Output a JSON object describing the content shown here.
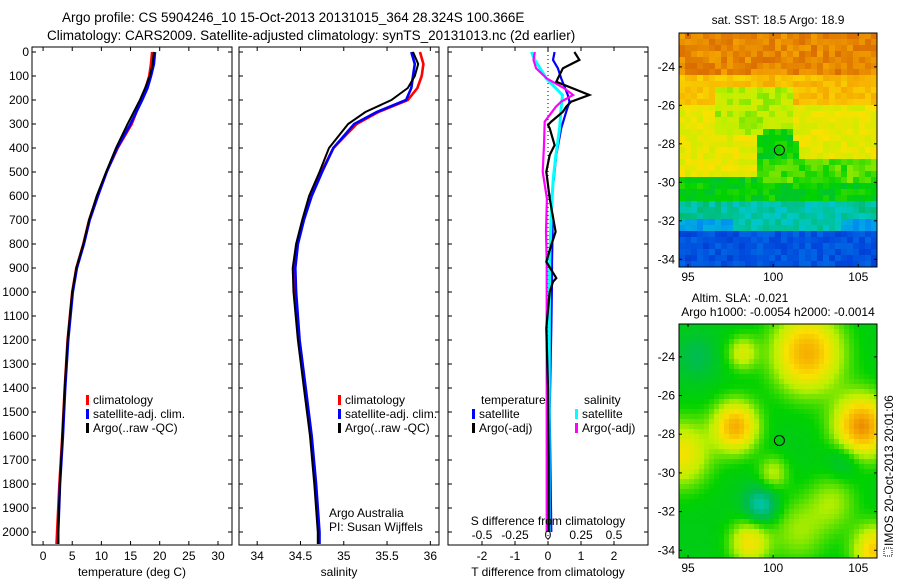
{
  "header": {
    "title_line1": "Argo profile: CS 5904246_10 15-Oct-2013 20131015_364 28.324S 100.366E",
    "title_line2": "Climatology: CARS2009. Satellite-adjusted climatology: synTS_20131013.nc (2d earlier)"
  },
  "credit": {
    "line1": "Argo Australia",
    "line2": "PI: Susan Wijffels"
  },
  "footer_stamp": "IMOS 20-Oct-2013 20:01:06",
  "colors": {
    "climatology": "#ff0000",
    "satellite": "#0000ff",
    "argo": "#000000",
    "sal_satellite": "#00ffff",
    "sal_argo": "#ff00ff"
  },
  "chart_data": [
    {
      "id": "temperature",
      "type": "line",
      "xlabel": "temperature (deg C)",
      "ylabel": "depth",
      "xlim": [
        -1.9,
        32.4
      ],
      "ylim": [
        2054,
        -21
      ],
      "xticks": [
        "0",
        "5",
        "10",
        "15",
        "20",
        "25",
        "30"
      ],
      "yticks": [
        "0",
        "100",
        "200",
        "300",
        "400",
        "500",
        "600",
        "700",
        "800",
        "900",
        "1000",
        "1100",
        "1200",
        "1300",
        "1400",
        "1500",
        "1600",
        "1700",
        "1800",
        "1900",
        "2000"
      ],
      "legend": [
        "climatology",
        "satellite-adj. clim.",
        "Argo(..raw -QC)"
      ],
      "depth": [
        0,
        50,
        100,
        150,
        200,
        300,
        400,
        500,
        600,
        700,
        800,
        900,
        1000,
        1200,
        1400,
        1600,
        1800,
        2000,
        2050
      ],
      "series": [
        {
          "name": "climatology",
          "values": [
            18.7,
            18.5,
            18.2,
            17.6,
            16.8,
            15.2,
            12.8,
            10.9,
            9.3,
            7.9,
            6.9,
            5.7,
            5.0,
            4.2,
            3.7,
            3.3,
            2.8,
            2.4,
            2.3
          ]
        },
        {
          "name": "satellite-adj. clim.",
          "values": [
            19.2,
            19.0,
            18.5,
            17.9,
            17.0,
            15.0,
            12.7,
            10.9,
            9.4,
            8.0,
            7.0,
            5.8,
            5.1,
            4.3,
            3.8,
            3.4,
            2.9,
            2.6,
            2.6
          ]
        },
        {
          "name": "Argo(..raw -QC)",
          "values": [
            19.0,
            18.8,
            18.3,
            17.5,
            16.6,
            14.5,
            12.5,
            10.8,
            9.2,
            7.9,
            6.9,
            5.7,
            5.0,
            4.2,
            3.7,
            3.3,
            2.9,
            2.6,
            2.6
          ]
        }
      ]
    },
    {
      "id": "salinity",
      "type": "line",
      "xlabel": "salinity",
      "xlim": [
        33.79,
        36.1
      ],
      "ylim": [
        2054,
        -21
      ],
      "xticks": [
        "34",
        "34.5",
        "35",
        "35.5",
        "36"
      ],
      "legend": [
        "climatology",
        "satellite-adj. clim.",
        "Argo(..raw -QC)"
      ],
      "depth": [
        0,
        50,
        100,
        150,
        200,
        250,
        300,
        400,
        500,
        600,
        700,
        800,
        900,
        1000,
        1200,
        1400,
        1600,
        1800,
        2000,
        2050
      ],
      "series": [
        {
          "name": "climatology",
          "values": [
            35.88,
            35.92,
            35.9,
            35.85,
            35.74,
            35.4,
            35.15,
            34.88,
            34.74,
            34.62,
            34.53,
            34.46,
            34.43,
            34.44,
            34.48,
            34.55,
            34.62,
            34.67,
            34.71,
            34.71
          ]
        },
        {
          "name": "satellite-adj. clim.",
          "values": [
            35.78,
            35.82,
            35.8,
            35.78,
            35.72,
            35.38,
            35.12,
            34.88,
            34.75,
            34.63,
            34.54,
            34.47,
            34.44,
            34.45,
            34.49,
            34.56,
            34.63,
            34.68,
            34.72,
            34.72
          ]
        },
        {
          "name": "Argo(..raw -QC)",
          "values": [
            35.8,
            35.86,
            35.82,
            35.74,
            35.55,
            35.25,
            35.05,
            34.83,
            34.72,
            34.6,
            34.52,
            34.45,
            34.41,
            34.42,
            34.47,
            34.54,
            34.61,
            34.66,
            34.7,
            34.7
          ]
        }
      ]
    },
    {
      "id": "difference",
      "type": "line",
      "xlabel": "T difference from climatology",
      "xlabel2": "S difference from climatology",
      "xlim": [
        -3.03,
        3.03
      ],
      "xlim_S": [
        -0.76,
        0.76
      ],
      "xticks": [
        "-2",
        "-1",
        "0",
        "1",
        "2"
      ],
      "xticks_S": [
        "-0.5",
        "-0.25",
        "0",
        "0.25",
        "0.5"
      ],
      "legend_titles": [
        "temperature",
        "salinity"
      ],
      "legend": [
        "satellite",
        "Argo(-adj)",
        "satellite",
        "Argo(-adj)"
      ],
      "series": [
        {
          "name": "temperature satellite",
          "units": "T",
          "depth": [
            0,
            33,
            68,
            110,
            179,
            207,
            249,
            318,
            429,
            526,
            610,
            749,
            874,
            957,
            1150,
            1500,
            2000
          ],
          "values": [
            0.2,
            0.15,
            0.3,
            0.4,
            0.6,
            0.65,
            0.55,
            0.4,
            0.25,
            0.18,
            0.1,
            0.14,
            0.12,
            0.12,
            0.1,
            0.05,
            0.1
          ]
        },
        {
          "name": "temperature Argo(-adj)",
          "units": "T",
          "depth": [
            0,
            33,
            68,
            110,
            124,
            179,
            207,
            228,
            249,
            290,
            304,
            318,
            388,
            429,
            499,
            610,
            749,
            804,
            874,
            942,
            957,
            1000,
            1150,
            1400,
            1700,
            2000
          ],
          "values": [
            0.8,
            0.95,
            0.45,
            0.3,
            0.25,
            1.25,
            0.7,
            0.55,
            0.45,
            0.1,
            0.0,
            0.05,
            0.2,
            0.05,
            -0.05,
            0.05,
            0.23,
            0.1,
            -0.05,
            0.25,
            0.15,
            0.05,
            -0.05,
            0.0,
            0.02,
            0.02
          ]
        },
        {
          "name": "salinity satellite",
          "units": "S",
          "depth": [
            0,
            33,
            110,
            179,
            228,
            318,
            429,
            526,
            665,
            874,
            1200,
            1600,
            2000
          ],
          "values": [
            -0.126,
            -0.1,
            -0.013,
            0.11,
            0.1,
            0.088,
            0.06,
            0.04,
            0.025,
            0.013,
            0.01,
            0.008,
            0.008
          ]
        },
        {
          "name": "salinity Argo(-adj)",
          "units": "S",
          "depth": [
            0,
            33,
            68,
            110,
            150,
            179,
            207,
            228,
            290,
            388,
            499,
            610,
            749,
            874,
            1100,
            1500,
            2000
          ],
          "values": [
            -0.1,
            -0.11,
            -0.09,
            -0.01,
            0.12,
            0.19,
            0.1,
            0.06,
            -0.025,
            -0.03,
            -0.04,
            -0.008,
            -0.015,
            -0.01,
            -0.01,
            -0.01,
            -0.01
          ]
        }
      ]
    },
    {
      "id": "sst-map",
      "type": "heatmap",
      "title": "sat. SST: 18.5 Argo: 18.9",
      "xlim": [
        94.47,
        106.1
      ],
      "ylim": [
        -34.4,
        -22.24
      ],
      "xticks": [
        "95",
        "100",
        "105"
      ],
      "yticks": [
        "-24",
        "-26",
        "-28",
        "-30",
        "-32",
        "-34"
      ],
      "marker": {
        "lon": 100.366,
        "lat": -28.324
      }
    },
    {
      "id": "sla-map",
      "type": "heatmap",
      "title": "Altim. SLA: -0.021",
      "subtitle": "Argo h1000: -0.0054 h2000: -0.0014",
      "xlim": [
        94.47,
        106.1
      ],
      "ylim": [
        -34.4,
        -22.3
      ],
      "xticks": [
        "95",
        "100",
        "105"
      ],
      "yticks": [
        "-24",
        "-26",
        "-28",
        "-30",
        "-32",
        "-34"
      ],
      "marker": {
        "lon": 100.366,
        "lat": -28.324
      }
    }
  ]
}
